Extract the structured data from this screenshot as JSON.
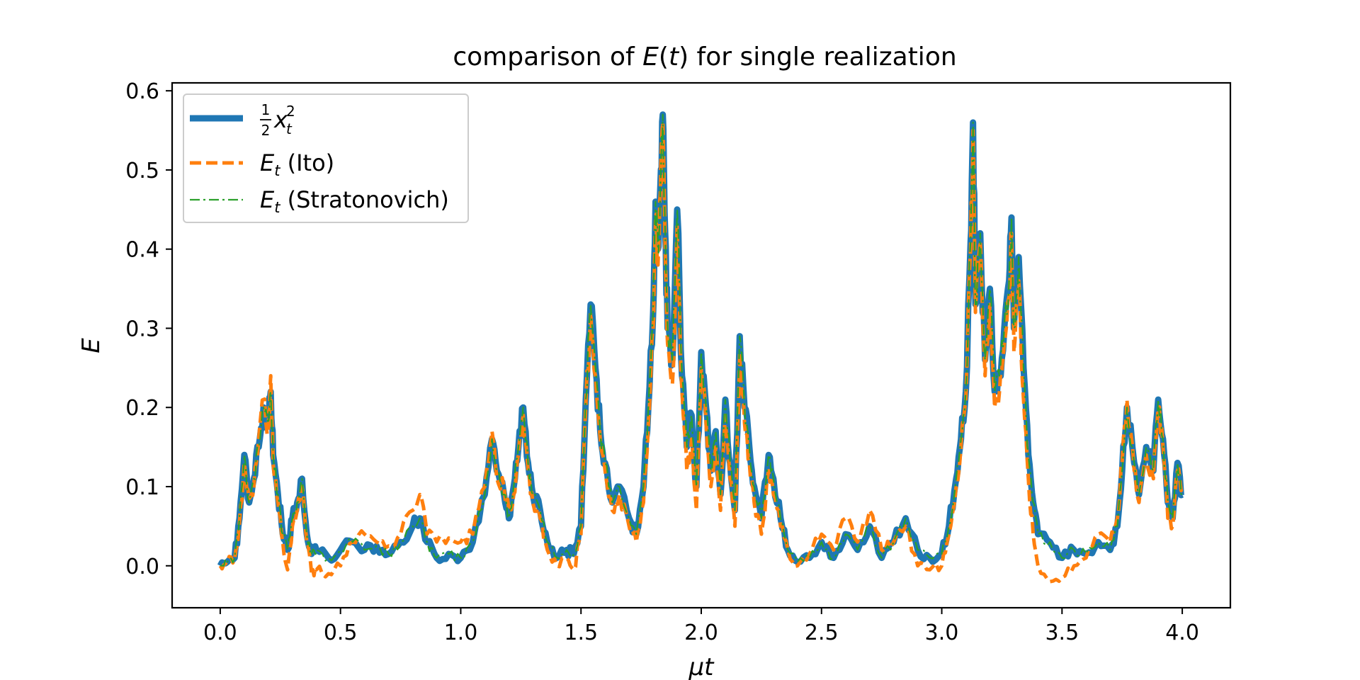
{
  "chart_data": {
    "type": "line",
    "title": {
      "prefix": "comparison of ",
      "var": "E",
      "arg": "(",
      "argvar": "t",
      "argclose": ")",
      "suffix": " for single realization"
    },
    "xlabel": "μt",
    "ylabel": "E",
    "xlim": [
      -0.2,
      4.2
    ],
    "ylim": [
      -0.053,
      0.61
    ],
    "xticks": [
      0.0,
      0.5,
      1.0,
      1.5,
      2.0,
      2.5,
      3.0,
      3.5,
      4.0
    ],
    "xtick_labels": [
      "0.0",
      "0.5",
      "1.0",
      "1.5",
      "2.0",
      "2.5",
      "3.0",
      "3.5",
      "4.0"
    ],
    "yticks": [
      0.0,
      0.1,
      0.2,
      0.3,
      0.4,
      0.5,
      0.6
    ],
    "ytick_labels": [
      "0.0",
      "0.1",
      "0.2",
      "0.3",
      "0.4",
      "0.5",
      "0.6"
    ],
    "grid": false,
    "legend_placement": "upper-left",
    "legend": [
      {
        "math_var": "x",
        "sub": "t",
        "sup": "2",
        "frac_num": "1",
        "frac_den": "2",
        "suffix": ""
      },
      {
        "math_var": "E",
        "sub": "t",
        "suffix": " (Ito)"
      },
      {
        "math_var": "E",
        "sub": "t",
        "suffix": " (Stratonovich)"
      }
    ],
    "series": [
      {
        "name": "½x_t²",
        "color": "#1f77b4",
        "style": "solid",
        "x": [
          0.0,
          0.03,
          0.06,
          0.08,
          0.1,
          0.12,
          0.14,
          0.16,
          0.18,
          0.2,
          0.21,
          0.22,
          0.24,
          0.26,
          0.28,
          0.3,
          0.32,
          0.34,
          0.36,
          0.38,
          0.4,
          0.45,
          0.5,
          0.55,
          0.6,
          0.65,
          0.7,
          0.75,
          0.8,
          0.83,
          0.86,
          0.9,
          0.95,
          1.0,
          1.05,
          1.1,
          1.13,
          1.15,
          1.18,
          1.2,
          1.22,
          1.24,
          1.26,
          1.28,
          1.3,
          1.33,
          1.36,
          1.4,
          1.44,
          1.47,
          1.5,
          1.52,
          1.54,
          1.56,
          1.58,
          1.6,
          1.63,
          1.66,
          1.7,
          1.73,
          1.76,
          1.78,
          1.8,
          1.81,
          1.82,
          1.83,
          1.84,
          1.85,
          1.86,
          1.88,
          1.9,
          1.92,
          1.94,
          1.96,
          1.98,
          2.0,
          2.02,
          2.04,
          2.06,
          2.08,
          2.1,
          2.12,
          2.14,
          2.16,
          2.18,
          2.2,
          2.22,
          2.25,
          2.28,
          2.3,
          2.33,
          2.36,
          2.4,
          2.45,
          2.5,
          2.55,
          2.6,
          2.65,
          2.7,
          2.75,
          2.8,
          2.85,
          2.9,
          2.95,
          3.0,
          3.03,
          3.06,
          3.08,
          3.1,
          3.12,
          3.13,
          3.14,
          3.16,
          3.18,
          3.2,
          3.22,
          3.24,
          3.26,
          3.28,
          3.29,
          3.3,
          3.32,
          3.34,
          3.36,
          3.38,
          3.4,
          3.45,
          3.5,
          3.55,
          3.6,
          3.65,
          3.7,
          3.73,
          3.75,
          3.77,
          3.8,
          3.82,
          3.85,
          3.88,
          3.9,
          3.92,
          3.94,
          3.96,
          3.98,
          4.0
        ],
        "y": [
          0.0,
          0.005,
          0.01,
          0.06,
          0.14,
          0.08,
          0.11,
          0.15,
          0.2,
          0.18,
          0.22,
          0.14,
          0.09,
          0.04,
          0.02,
          0.06,
          0.08,
          0.11,
          0.04,
          0.015,
          0.02,
          0.01,
          0.02,
          0.03,
          0.02,
          0.025,
          0.015,
          0.03,
          0.05,
          0.06,
          0.03,
          0.01,
          0.015,
          0.01,
          0.03,
          0.09,
          0.16,
          0.12,
          0.09,
          0.06,
          0.1,
          0.15,
          0.2,
          0.13,
          0.09,
          0.07,
          0.03,
          0.01,
          0.02,
          0.015,
          0.05,
          0.21,
          0.33,
          0.25,
          0.17,
          0.13,
          0.08,
          0.1,
          0.06,
          0.04,
          0.1,
          0.2,
          0.32,
          0.46,
          0.4,
          0.48,
          0.57,
          0.42,
          0.3,
          0.26,
          0.45,
          0.24,
          0.15,
          0.19,
          0.1,
          0.27,
          0.2,
          0.12,
          0.17,
          0.09,
          0.21,
          0.13,
          0.07,
          0.29,
          0.2,
          0.15,
          0.1,
          0.06,
          0.14,
          0.11,
          0.06,
          0.02,
          0.005,
          0.01,
          0.03,
          0.01,
          0.04,
          0.02,
          0.05,
          0.01,
          0.03,
          0.06,
          0.02,
          0.01,
          0.015,
          0.05,
          0.11,
          0.16,
          0.22,
          0.41,
          0.56,
          0.33,
          0.42,
          0.26,
          0.35,
          0.22,
          0.24,
          0.3,
          0.36,
          0.44,
          0.3,
          0.39,
          0.25,
          0.14,
          0.08,
          0.04,
          0.03,
          0.01,
          0.02,
          0.015,
          0.03,
          0.02,
          0.05,
          0.12,
          0.2,
          0.13,
          0.09,
          0.15,
          0.12,
          0.21,
          0.16,
          0.08,
          0.06,
          0.13,
          0.09
        ]
      },
      {
        "name": "E_t (Ito)",
        "color": "#ff7f0e",
        "style": "dashed",
        "x": [
          0.0,
          0.03,
          0.06,
          0.08,
          0.1,
          0.12,
          0.14,
          0.16,
          0.18,
          0.2,
          0.21,
          0.22,
          0.24,
          0.26,
          0.28,
          0.3,
          0.32,
          0.34,
          0.36,
          0.38,
          0.4,
          0.45,
          0.5,
          0.55,
          0.6,
          0.65,
          0.7,
          0.75,
          0.8,
          0.83,
          0.86,
          0.9,
          0.95,
          1.0,
          1.05,
          1.1,
          1.13,
          1.15,
          1.18,
          1.2,
          1.22,
          1.24,
          1.26,
          1.28,
          1.3,
          1.33,
          1.36,
          1.4,
          1.44,
          1.47,
          1.5,
          1.52,
          1.54,
          1.56,
          1.58,
          1.6,
          1.63,
          1.66,
          1.7,
          1.73,
          1.76,
          1.78,
          1.8,
          1.81,
          1.82,
          1.83,
          1.84,
          1.85,
          1.86,
          1.88,
          1.9,
          1.92,
          1.94,
          1.96,
          1.98,
          2.0,
          2.02,
          2.04,
          2.06,
          2.08,
          2.1,
          2.12,
          2.14,
          2.16,
          2.18,
          2.2,
          2.22,
          2.25,
          2.28,
          2.3,
          2.33,
          2.36,
          2.4,
          2.45,
          2.5,
          2.55,
          2.6,
          2.65,
          2.7,
          2.75,
          2.8,
          2.85,
          2.9,
          2.95,
          3.0,
          3.03,
          3.06,
          3.08,
          3.1,
          3.12,
          3.13,
          3.14,
          3.16,
          3.18,
          3.2,
          3.22,
          3.24,
          3.26,
          3.28,
          3.29,
          3.3,
          3.32,
          3.34,
          3.36,
          3.38,
          3.4,
          3.45,
          3.5,
          3.55,
          3.6,
          3.65,
          3.7,
          3.73,
          3.75,
          3.77,
          3.8,
          3.82,
          3.85,
          3.88,
          3.9,
          3.92,
          3.94,
          3.96,
          3.98,
          4.0
        ],
        "y": [
          0.0,
          0.006,
          0.008,
          0.055,
          0.13,
          0.085,
          0.1,
          0.16,
          0.21,
          0.17,
          0.24,
          0.13,
          0.08,
          0.03,
          -0.005,
          0.05,
          0.07,
          0.1,
          0.03,
          -0.01,
          -0.005,
          -0.01,
          0.0,
          0.03,
          0.04,
          0.03,
          0.025,
          0.04,
          0.07,
          0.09,
          0.04,
          0.03,
          0.035,
          0.03,
          0.04,
          0.1,
          0.17,
          0.11,
          0.1,
          0.07,
          0.09,
          0.14,
          0.19,
          0.12,
          0.08,
          0.06,
          0.02,
          0.0,
          0.01,
          -0.005,
          0.04,
          0.2,
          0.32,
          0.24,
          0.16,
          0.12,
          0.07,
          0.09,
          0.05,
          0.03,
          0.08,
          0.18,
          0.3,
          0.44,
          0.38,
          0.47,
          0.56,
          0.4,
          0.28,
          0.23,
          0.43,
          0.22,
          0.12,
          0.16,
          0.07,
          0.25,
          0.18,
          0.1,
          0.15,
          0.07,
          0.19,
          0.11,
          0.05,
          0.27,
          0.18,
          0.13,
          0.08,
          0.04,
          0.12,
          0.09,
          0.05,
          0.02,
          0.0,
          0.015,
          0.04,
          0.02,
          0.06,
          0.03,
          0.07,
          0.02,
          0.03,
          0.05,
          0.0,
          -0.005,
          0.0,
          0.04,
          0.1,
          0.15,
          0.21,
          0.4,
          0.55,
          0.32,
          0.41,
          0.24,
          0.33,
          0.2,
          0.22,
          0.28,
          0.34,
          0.42,
          0.27,
          0.36,
          0.21,
          0.11,
          0.04,
          0.0,
          -0.02,
          -0.015,
          0.0,
          0.01,
          0.04,
          0.03,
          0.06,
          0.13,
          0.21,
          0.12,
          0.08,
          0.14,
          0.11,
          0.2,
          0.15,
          0.06,
          0.05,
          0.12,
          0.1
        ]
      },
      {
        "name": "E_t (Stratonovich)",
        "color": "#2ca02c",
        "style": "dashdot",
        "x": [
          0.0,
          0.03,
          0.06,
          0.08,
          0.1,
          0.12,
          0.14,
          0.16,
          0.18,
          0.2,
          0.21,
          0.22,
          0.24,
          0.26,
          0.28,
          0.3,
          0.32,
          0.34,
          0.36,
          0.38,
          0.4,
          0.45,
          0.5,
          0.55,
          0.6,
          0.65,
          0.7,
          0.75,
          0.8,
          0.83,
          0.86,
          0.9,
          0.95,
          1.0,
          1.05,
          1.1,
          1.13,
          1.15,
          1.18,
          1.2,
          1.22,
          1.24,
          1.26,
          1.28,
          1.3,
          1.33,
          1.36,
          1.4,
          1.44,
          1.47,
          1.5,
          1.52,
          1.54,
          1.56,
          1.58,
          1.6,
          1.63,
          1.66,
          1.7,
          1.73,
          1.76,
          1.78,
          1.8,
          1.81,
          1.82,
          1.83,
          1.84,
          1.85,
          1.86,
          1.88,
          1.9,
          1.92,
          1.94,
          1.96,
          1.98,
          2.0,
          2.02,
          2.04,
          2.06,
          2.08,
          2.1,
          2.12,
          2.14,
          2.16,
          2.18,
          2.2,
          2.22,
          2.25,
          2.28,
          2.3,
          2.33,
          2.36,
          2.4,
          2.45,
          2.5,
          2.55,
          2.6,
          2.65,
          2.7,
          2.75,
          2.8,
          2.85,
          2.9,
          2.95,
          3.0,
          3.03,
          3.06,
          3.08,
          3.1,
          3.12,
          3.13,
          3.14,
          3.16,
          3.18,
          3.2,
          3.22,
          3.24,
          3.26,
          3.28,
          3.29,
          3.3,
          3.32,
          3.34,
          3.36,
          3.38,
          3.4,
          3.45,
          3.5,
          3.55,
          3.6,
          3.65,
          3.7,
          3.73,
          3.75,
          3.77,
          3.8,
          3.82,
          3.85,
          3.88,
          3.9,
          3.92,
          3.94,
          3.96,
          3.98,
          4.0
        ],
        "y": [
          0.0,
          0.005,
          0.01,
          0.06,
          0.14,
          0.08,
          0.11,
          0.15,
          0.2,
          0.18,
          0.22,
          0.14,
          0.09,
          0.04,
          0.02,
          0.06,
          0.08,
          0.11,
          0.04,
          0.015,
          0.02,
          0.01,
          0.02,
          0.03,
          0.02,
          0.025,
          0.015,
          0.03,
          0.05,
          0.06,
          0.03,
          0.01,
          0.015,
          0.01,
          0.03,
          0.09,
          0.16,
          0.12,
          0.09,
          0.06,
          0.1,
          0.15,
          0.2,
          0.13,
          0.09,
          0.07,
          0.03,
          0.01,
          0.02,
          0.015,
          0.05,
          0.21,
          0.33,
          0.25,
          0.17,
          0.13,
          0.08,
          0.1,
          0.06,
          0.04,
          0.1,
          0.2,
          0.32,
          0.46,
          0.4,
          0.48,
          0.57,
          0.42,
          0.3,
          0.26,
          0.45,
          0.24,
          0.15,
          0.19,
          0.1,
          0.27,
          0.2,
          0.12,
          0.17,
          0.09,
          0.21,
          0.13,
          0.07,
          0.29,
          0.2,
          0.15,
          0.1,
          0.06,
          0.14,
          0.11,
          0.06,
          0.02,
          0.005,
          0.01,
          0.03,
          0.01,
          0.04,
          0.02,
          0.05,
          0.01,
          0.03,
          0.06,
          0.02,
          0.01,
          0.015,
          0.05,
          0.11,
          0.16,
          0.22,
          0.41,
          0.56,
          0.33,
          0.42,
          0.26,
          0.35,
          0.22,
          0.24,
          0.3,
          0.36,
          0.44,
          0.3,
          0.39,
          0.25,
          0.14,
          0.08,
          0.04,
          0.03,
          0.01,
          0.02,
          0.015,
          0.03,
          0.02,
          0.05,
          0.12,
          0.2,
          0.13,
          0.09,
          0.15,
          0.12,
          0.21,
          0.16,
          0.08,
          0.06,
          0.13,
          0.09
        ]
      }
    ]
  }
}
